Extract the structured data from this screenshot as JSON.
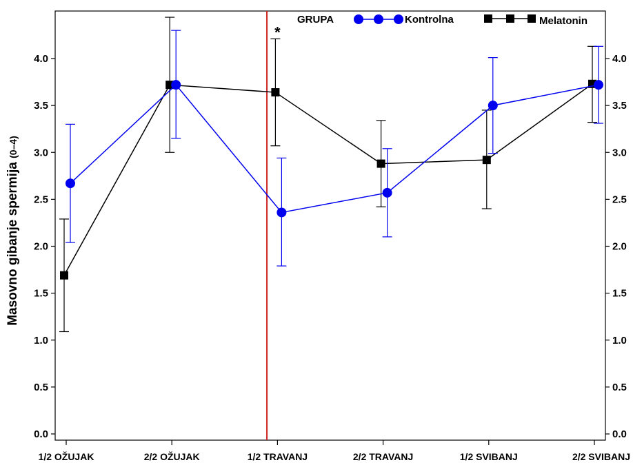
{
  "chart_data": {
    "type": "line",
    "title": "",
    "xlabel": "",
    "ylabel": "Masovno gibanje spermija (0–4)",
    "ylabel_main": "Masovno gibanje spermija",
    "ylabel_range": "(0–4)",
    "ylim": [
      0,
      4.4
    ],
    "yticks": [
      0.0,
      0.5,
      1.0,
      1.5,
      2.0,
      2.5,
      3.0,
      3.5,
      4.0
    ],
    "ytick_labels": [
      "0.0",
      "0.5",
      "1.0",
      "1.5",
      "2.0",
      "2.5",
      "3.0",
      "3.5",
      "4.0"
    ],
    "categories": [
      "1/2 OŽUJAK",
      "2/2 OŽUJAK",
      "1/2 TRAVANJ",
      "2/2 TRAVANJ",
      "1/2 SVIBANJ",
      "2/2 SVIBANJ"
    ],
    "grid": false,
    "legend_position": "top",
    "legend_title": "GRUPA",
    "series": [
      {
        "name": "Kontrolna",
        "color": "#0000ee",
        "marker": "circle",
        "values": [
          2.67,
          3.72,
          2.36,
          2.57,
          3.5,
          3.72
        ],
        "err_low": [
          2.04,
          3.15,
          1.79,
          2.1,
          2.99,
          3.31
        ],
        "err_high": [
          3.3,
          4.3,
          2.94,
          3.04,
          4.01,
          4.13
        ]
      },
      {
        "name": "Melatonin",
        "color": "#000000",
        "marker": "square",
        "values": [
          1.69,
          3.72,
          3.64,
          2.88,
          2.92,
          3.73
        ],
        "err_low": [
          1.09,
          3.0,
          3.07,
          2.42,
          2.4,
          3.32
        ],
        "err_high": [
          2.29,
          4.44,
          4.21,
          3.34,
          3.45,
          4.13
        ]
      }
    ],
    "reference_line": {
      "category_position": 1.9,
      "color": "#cc2222"
    },
    "annotations": [
      {
        "text": "*",
        "category_index": 2,
        "y": 4.34
      }
    ]
  }
}
